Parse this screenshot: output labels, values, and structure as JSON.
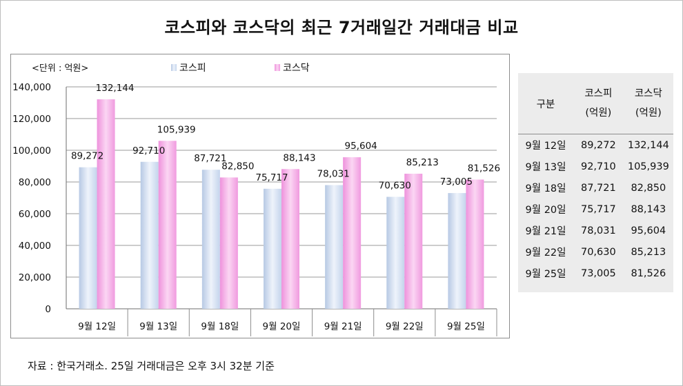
{
  "title": "코스피와 코스닥의 최근 7거래일간 거래대금 비교",
  "source_note": "자료 : 한국거래소. 25일 거래대금은 오후 3시 32분 기준",
  "chart_data": {
    "type": "bar",
    "unit_label": "<단위 : 억원>",
    "categories": [
      "9월 12일",
      "9월 13일",
      "9월 18일",
      "9월 20일",
      "9월 21일",
      "9월 22일",
      "9월 25일"
    ],
    "series": [
      {
        "name": "코스피",
        "values": [
          89272,
          92710,
          87721,
          75717,
          78031,
          70630,
          73005
        ],
        "color": "#c9d9ee"
      },
      {
        "name": "코스닥",
        "values": [
          132144,
          105939,
          82850,
          88143,
          95604,
          85213,
          81526
        ],
        "color": "#f3a8e6"
      }
    ],
    "value_labels": [
      [
        "89,272",
        "92,710",
        "87,721",
        "75,717",
        "78,031",
        "70,630",
        "73,005"
      ],
      [
        "132,144",
        "105,939",
        "82,850",
        "88,143",
        "95,604",
        "85,213",
        "81,526"
      ]
    ],
    "yticks": [
      "0",
      "20,000",
      "40,000",
      "60,000",
      "80,000",
      "100,000",
      "120,000",
      "140,000"
    ],
    "ylim": [
      0,
      140000
    ],
    "grid": true,
    "legend": "top"
  },
  "table": {
    "header": [
      "구분",
      "코스피\n(억원)",
      "코스닥\n(억원)"
    ],
    "rows": [
      [
        "9월 12일",
        "89,272",
        "132,144"
      ],
      [
        "9월 13일",
        "92,710",
        "105,939"
      ],
      [
        "9월 18일",
        "87,721",
        "82,850"
      ],
      [
        "9월 20일",
        "75,717",
        "88,143"
      ],
      [
        "9월 21일",
        "78,031",
        "95,604"
      ],
      [
        "9월 22일",
        "70,630",
        "85,213"
      ],
      [
        "9월 25일",
        "73,005",
        "81,526"
      ]
    ]
  }
}
